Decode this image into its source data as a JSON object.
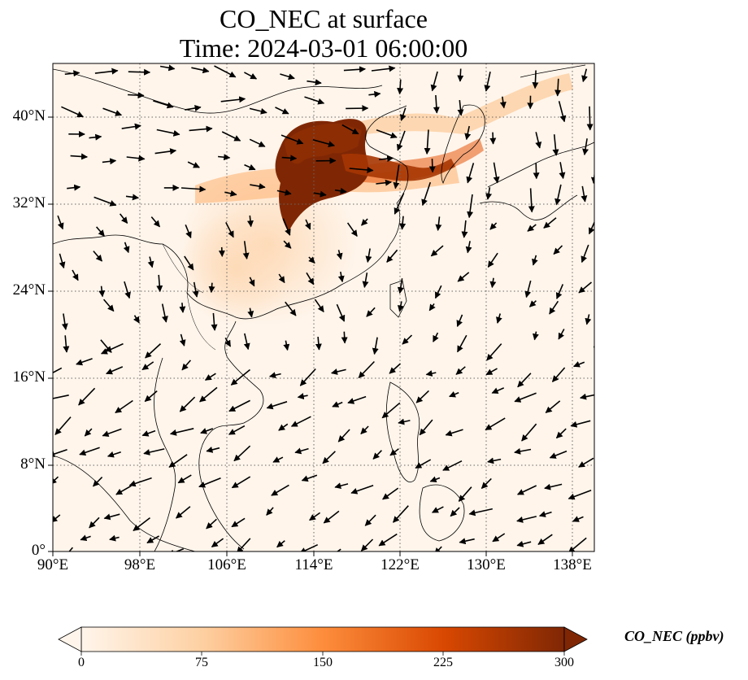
{
  "title_line1": "CO_NEC at surface",
  "title_line2": "Time: 2024-03-01 06:00:00",
  "map": {
    "projection": "lat-lon",
    "lon_range": [
      90,
      140
    ],
    "lat_range": [
      0,
      45
    ],
    "lon_ticks": [
      "90°E",
      "98°E",
      "106°E",
      "114°E",
      "122°E",
      "130°E",
      "138°E"
    ],
    "lat_ticks": [
      "0°",
      "8°N",
      "16°N",
      "24°N",
      "32°N",
      "40°N"
    ],
    "gridlines": "dotted",
    "field_variable": "CO_NEC",
    "overlay": "wind vectors (black arrows)",
    "hotspot_region": "North China Plain, ~110–120°E, 30–40°N"
  },
  "colorbar": {
    "label": "CO_NEC (ppbv)",
    "ticks": [
      "0",
      "75",
      "150",
      "225",
      "300"
    ],
    "min": 0,
    "max": 300,
    "extend": "both",
    "colors": [
      "#fff5eb",
      "#fdd0a2",
      "#fd8d3c",
      "#d94801",
      "#7f2704"
    ]
  }
}
